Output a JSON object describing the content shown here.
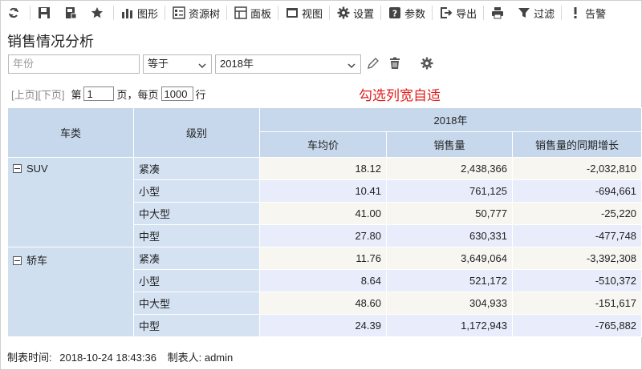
{
  "toolbar": {
    "items": [
      {
        "label": "",
        "icon": "refresh-icon"
      },
      {
        "label": "",
        "icon": "save-icon"
      },
      {
        "label": "",
        "icon": "save-as-icon"
      },
      {
        "label": "",
        "icon": "star-icon"
      },
      {
        "label": "图形",
        "icon": "chart-icon"
      },
      {
        "label": "资源树",
        "icon": "resource-tree-icon"
      },
      {
        "label": "面板",
        "icon": "panel-icon"
      },
      {
        "label": "视图",
        "icon": "view-icon"
      },
      {
        "label": "设置",
        "icon": "gear-icon"
      },
      {
        "label": "参数",
        "icon": "help-icon"
      },
      {
        "label": "导出",
        "icon": "export-icon"
      },
      {
        "label": "",
        "icon": "print-icon"
      },
      {
        "label": "过滤",
        "icon": "filter-icon"
      },
      {
        "label": "告警",
        "icon": "alert-icon"
      }
    ]
  },
  "page_title": "销售情况分析",
  "filter": {
    "field_placeholder": "年份",
    "operator": "等于",
    "value": "2018年"
  },
  "pager": {
    "prev": "[上页]",
    "next": "[下页]",
    "page_prefix": "第",
    "page_value": "1",
    "page_suffix": "页，每页",
    "rows_value": "1000",
    "rows_suffix": "行"
  },
  "notice": "勾选列宽自适",
  "table": {
    "col_category": "车类",
    "col_level": "级别",
    "year": "2018年",
    "col_avg_price": "车均价",
    "col_sales": "销售量",
    "col_growth": "销售量的同期增长",
    "groups": [
      {
        "category": "SUV",
        "rows": [
          {
            "level": "紧凑",
            "avg_price": "18.12",
            "sales": "2,438,366",
            "growth": "-2,032,810"
          },
          {
            "level": "小型",
            "avg_price": "10.41",
            "sales": "761,125",
            "growth": "-694,661"
          },
          {
            "level": "中大型",
            "avg_price": "41.00",
            "sales": "50,777",
            "growth": "-25,220"
          },
          {
            "level": "中型",
            "avg_price": "27.80",
            "sales": "630,331",
            "growth": "-477,748"
          }
        ]
      },
      {
        "category": "轿车",
        "rows": [
          {
            "level": "紧凑",
            "avg_price": "11.76",
            "sales": "3,649,064",
            "growth": "-3,392,308"
          },
          {
            "level": "小型",
            "avg_price": "8.64",
            "sales": "521,172",
            "growth": "-510,372"
          },
          {
            "level": "中大型",
            "avg_price": "48.60",
            "sales": "304,933",
            "growth": "-151,617"
          },
          {
            "level": "中型",
            "avg_price": "24.39",
            "sales": "1,172,943",
            "growth": "-765,882"
          }
        ]
      }
    ]
  },
  "footer": {
    "time_label": "制表时间:",
    "time_value": "2018-10-24 18:43:36",
    "author_label": "制表人:",
    "author_value": "admin"
  }
}
